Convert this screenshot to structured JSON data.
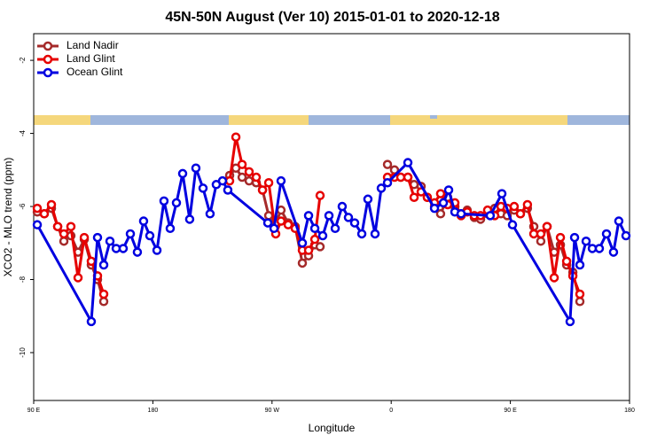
{
  "chart_data": {
    "type": "line",
    "title": "45N-50N August (Ver 10)   2015-01-01 to 2020-12-18",
    "x_label": "Longitude",
    "y_label": "XCO2 - MLO trend (ppm)",
    "xlim": [
      90,
      540
    ],
    "ylim": [
      -11.31,
      -1.27
    ],
    "xticks": [
      {
        "value": 90,
        "label": "90 E"
      },
      {
        "value": 180,
        "label": "180"
      },
      {
        "value": 270,
        "label": "90 W"
      },
      {
        "value": 360,
        "label": "0"
      },
      {
        "value": 450,
        "label": "90 E"
      },
      {
        "value": 540,
        "label": "180"
      }
    ],
    "yticks": [
      -2,
      -4,
      -6,
      -8,
      -10
    ],
    "legend": "top-left",
    "series": [
      {
        "name": "Land Nadir",
        "color": "#a52a2a",
        "x": [
          92.7,
          98.0,
          103.4,
          108.1,
          112.8,
          118.1,
          123.5,
          128.2,
          133.5,
          138.2,
          142.9,
          null,
          238.0,
          242.7,
          247.4,
          252.7,
          258.1,
          262.8,
          267.5,
          272.8,
          276.8,
          282.2,
          287.5,
          292.9,
          297.6,
          302.3,
          306.3,
          null,
          357.2,
          362.5,
          367.2,
          372.6,
          377.3,
          382.6,
          387.3,
          392.7,
          397.3,
          402.7,
          408.1,
          412.8,
          417.4,
          422.8,
          427.5,
          432.8,
          438.2,
          442.9,
          447.6,
          452.9,
          457.6,
          462.9,
          467.7,
          473.0,
          477.7,
          483.1,
          487.8,
          492.5,
          497.2,
          502.5
        ],
        "values": [
          -6.15,
          -6.2,
          -6.05,
          -6.55,
          -6.95,
          -6.8,
          -7.25,
          -6.9,
          -7.6,
          -8.0,
          -8.6,
          null,
          -5.15,
          -4.95,
          -5.2,
          -5.3,
          -5.35,
          -5.55,
          -6.25,
          -6.45,
          -6.1,
          -6.45,
          -6.55,
          -7.55,
          -7.35,
          -7.05,
          -7.1,
          null,
          -4.85,
          -5.0,
          -5.2,
          -5.2,
          -5.4,
          -5.45,
          -5.75,
          -6.0,
          -6.2,
          -5.75,
          -6.0,
          -6.2,
          -6.1,
          -6.3,
          -6.35,
          -6.2,
          -6.05,
          -6.2,
          -6.25,
          -6.1,
          -6.2,
          -6.05,
          -6.55,
          -6.95,
          -6.55,
          -7.25,
          -7.05,
          -7.6,
          -7.8,
          -8.6
        ]
      },
      {
        "name": "Land Glint",
        "color": "#e60000",
        "x": [
          92.7,
          98.0,
          103.4,
          108.1,
          112.8,
          118.1,
          123.5,
          128.2,
          133.5,
          138.2,
          142.9,
          null,
          238.0,
          242.7,
          247.4,
          252.7,
          258.1,
          262.8,
          267.5,
          272.8,
          276.8,
          282.2,
          287.5,
          292.9,
          297.6,
          302.3,
          306.3,
          null,
          357.2,
          362.5,
          367.2,
          372.6,
          377.3,
          382.6,
          387.3,
          392.7,
          397.3,
          402.7,
          408.1,
          412.8,
          417.4,
          422.8,
          427.5,
          432.8,
          438.2,
          442.9,
          447.6,
          452.9,
          457.6,
          462.9,
          467.7,
          473.0,
          477.7,
          483.1,
          487.8,
          492.5,
          497.2,
          502.5
        ],
        "values": [
          -6.05,
          -6.2,
          -5.95,
          -6.55,
          -6.75,
          -6.55,
          -7.95,
          -6.85,
          -7.5,
          -7.9,
          -8.4,
          null,
          -5.3,
          -4.1,
          -4.85,
          -5.05,
          -5.2,
          -5.55,
          -5.35,
          -6.75,
          -6.4,
          -6.5,
          -6.6,
          -7.2,
          -7.2,
          -6.9,
          -5.7,
          null,
          -5.2,
          -5.2,
          -5.2,
          -5.2,
          -5.75,
          -5.6,
          -5.75,
          -5.9,
          -5.65,
          -5.95,
          -5.9,
          -6.25,
          -6.15,
          -6.25,
          -6.25,
          -6.1,
          -6.25,
          -6.0,
          -6.05,
          -6.0,
          -6.2,
          -5.95,
          -6.75,
          -6.75,
          -6.55,
          -7.95,
          -6.85,
          -7.5,
          -7.9,
          -8.4
        ]
      },
      {
        "name": "Ocean Glint",
        "color": "#0000e0",
        "x": [
          92.7,
          133.5,
          138.2,
          142.9,
          147.6,
          152.3,
          157.6,
          163.0,
          168.3,
          173.0,
          177.7,
          183.1,
          188.4,
          193.1,
          197.8,
          202.5,
          207.8,
          212.5,
          217.9,
          223.2,
          227.9,
          232.6,
          236.6,
          266.8,
          271.5,
          276.8,
          292.9,
          297.6,
          302.3,
          308.3,
          313.0,
          317.7,
          323.0,
          327.7,
          332.4,
          337.8,
          342.4,
          347.8,
          352.5,
          357.2,
          372.6,
          392.7,
          399.4,
          403.4,
          408.1,
          412.8,
          434.8,
          443.6,
          451.6,
          495.1,
          498.5,
          502.5,
          507.2,
          511.9,
          517.2,
          522.6,
          527.9,
          531.9,
          537.3
        ],
        "values": [
          -6.5,
          -9.15,
          -6.85,
          -7.6,
          -6.95,
          -7.15,
          -7.15,
          -6.75,
          -7.25,
          -6.4,
          -6.8,
          -7.2,
          -5.85,
          -6.6,
          -5.9,
          -5.1,
          -6.35,
          -4.95,
          -5.5,
          -6.2,
          -5.4,
          -5.3,
          -5.55,
          -6.45,
          -6.6,
          -5.3,
          -7.0,
          -6.25,
          -6.6,
          -6.8,
          -6.25,
          -6.6,
          -6.0,
          -6.3,
          -6.45,
          -6.75,
          -5.8,
          -6.75,
          -5.5,
          -5.35,
          -4.8,
          -6.05,
          -5.9,
          -5.55,
          -6.15,
          -6.2,
          -6.25,
          -5.65,
          -6.5,
          -9.15,
          -6.85,
          -7.6,
          -6.95,
          -7.15,
          -7.15,
          -6.75,
          -7.25,
          -6.4,
          -6.8
        ]
      }
    ]
  }
}
